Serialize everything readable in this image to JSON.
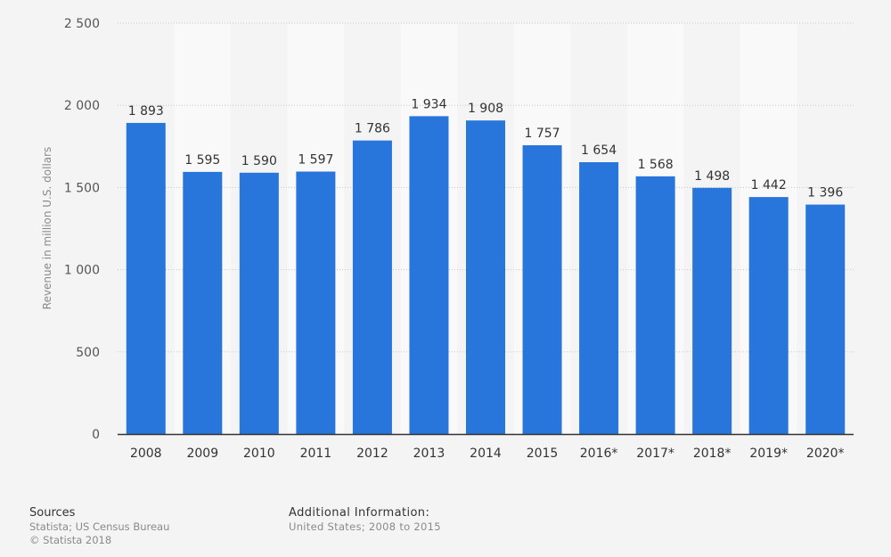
{
  "chart_data": {
    "type": "bar",
    "categories": [
      "2008",
      "2009",
      "2010",
      "2011",
      "2012",
      "2013",
      "2014",
      "2015",
      "2016*",
      "2017*",
      "2018*",
      "2019*",
      "2020*"
    ],
    "values": [
      1893,
      1595,
      1590,
      1597,
      1786,
      1934,
      1908,
      1757,
      1654,
      1568,
      1498,
      1442,
      1396
    ],
    "data_labels": [
      "1 893",
      "1 595",
      "1 590",
      "1 597",
      "1 786",
      "1 934",
      "1 908",
      "1 757",
      "1 654",
      "1 568",
      "1 498",
      "1 442",
      "1 396"
    ],
    "ylabel": "Revenue in million U.S. dollars",
    "xlabel": "",
    "ylim": [
      0,
      2500
    ],
    "yticks": [
      0,
      500,
      1000,
      1500,
      2000,
      2500
    ],
    "ytick_labels": [
      "0",
      "500",
      "1 000",
      "1 500",
      "2 000",
      "2 500"
    ],
    "grid": true,
    "legend": "none",
    "bar_color": "#2875dc"
  },
  "footer": {
    "sources_title": "Sources",
    "sources_lines": [
      "Statista; US Census Bureau",
      "© Statista 2018"
    ],
    "additional_title": "Additional Information:",
    "additional_text": "United States; 2008 to 2015"
  }
}
